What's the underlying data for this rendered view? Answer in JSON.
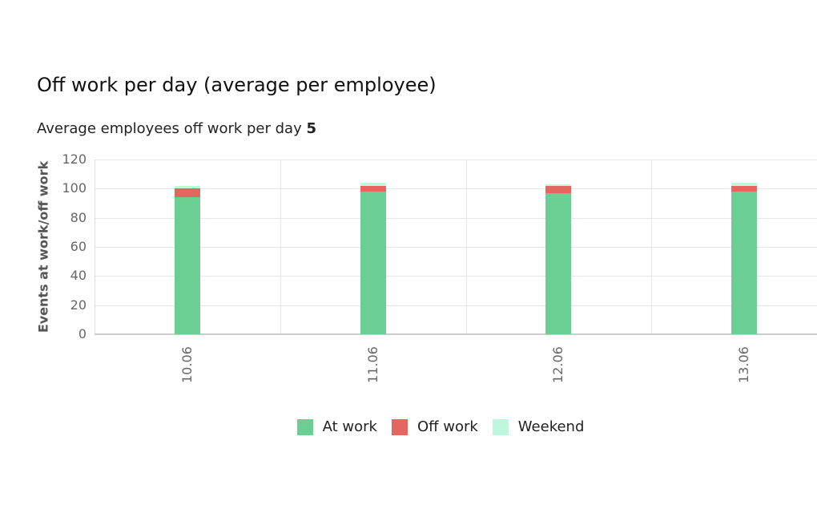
{
  "header": {
    "title": "Off work per day (average per employee)",
    "subtitle_label": "Average employees off work per day",
    "subtitle_value": "5"
  },
  "colors": {
    "at_work": "#6bcf94",
    "off_work": "#e5665f",
    "weekend": "#bdf7dc",
    "grid": "#e6e6e6"
  },
  "chart_data": {
    "type": "bar",
    "stacked": true,
    "title": "Off work per day (average per employee)",
    "subtitle": "Average employees off work per day 5",
    "xlabel": "",
    "ylabel": "Events at work/off work",
    "ylim": [
      0,
      120
    ],
    "yticks": [
      0,
      20,
      40,
      60,
      80,
      100,
      120
    ],
    "grid": true,
    "legend_position": "bottom",
    "categories": [
      "10.06",
      "11.06",
      "12.06",
      "13.06"
    ],
    "series": [
      {
        "name": "At work",
        "color": "#6bcf94",
        "values": [
          94,
          98,
          97,
          98
        ]
      },
      {
        "name": "Off work",
        "color": "#e5665f",
        "values": [
          6,
          4,
          5,
          4
        ]
      },
      {
        "name": "Weekend",
        "color": "#bdf7dc",
        "values": [
          2,
          2,
          1,
          2
        ]
      }
    ]
  },
  "legend": {
    "items": [
      {
        "label": "At work",
        "color": "#6bcf94"
      },
      {
        "label": "Off work",
        "color": "#e5665f"
      },
      {
        "label": "Weekend",
        "color": "#bdf7dc"
      }
    ]
  }
}
